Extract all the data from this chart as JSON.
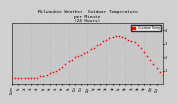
{
  "title": "Milwaukee Weather  Outdoor Temperature\nper Minute\n(24 Hours)",
  "line_color": "#ff0000",
  "bg_color": "#d0d0d0",
  "plot_bg": "#c8c8c8",
  "ylim": [
    0,
    45
  ],
  "xlim": [
    0,
    1440
  ],
  "ytick_values": [
    10,
    20,
    30,
    40
  ],
  "ytick_labels": [
    "1",
    "2",
    "3",
    "4"
  ],
  "title_fontsize": 3.2,
  "markersize": 1.5,
  "grid_color": "#aaaaaa",
  "xtick_labels": [
    "12am",
    "1a",
    "2a",
    "3a",
    "4a",
    "5a",
    "6a",
    "7a",
    "8a",
    "9a",
    "10a",
    "11a",
    "12p",
    "1p",
    "2p",
    "3p",
    "4p",
    "5p",
    "6p",
    "7p",
    "8p",
    "9p",
    "10p",
    "11p"
  ],
  "legend_label": "Outdoor Temp",
  "legend_color": "#ff0000",
  "temperature_data_x": [
    0,
    30,
    60,
    90,
    120,
    150,
    180,
    210,
    240,
    270,
    300,
    330,
    360,
    390,
    420,
    450,
    480,
    510,
    540,
    570,
    600,
    630,
    660,
    690,
    720,
    750,
    780,
    810,
    840,
    870,
    900,
    930,
    960,
    990,
    1020,
    1050,
    1080,
    1110,
    1140,
    1170,
    1200,
    1230,
    1260,
    1290,
    1320,
    1350,
    1380,
    1410,
    1440
  ],
  "temperature_data_y": [
    5,
    5,
    5,
    5,
    5,
    5,
    5,
    5,
    5,
    6,
    6,
    7,
    8,
    9,
    10,
    11,
    13,
    15,
    17,
    18,
    20,
    21,
    22,
    23,
    24,
    26,
    27,
    29,
    30,
    32,
    33,
    34,
    35,
    36,
    36,
    35,
    34,
    33,
    32,
    31,
    29,
    27,
    24,
    21,
    18,
    15,
    12,
    9,
    7
  ],
  "vgrid_positions": [
    0,
    180,
    360,
    540,
    720,
    900,
    1080,
    1260
  ],
  "note_text": "Milwaukee Weather  Outdoor Temperature\nper Minute (24 Hours)"
}
